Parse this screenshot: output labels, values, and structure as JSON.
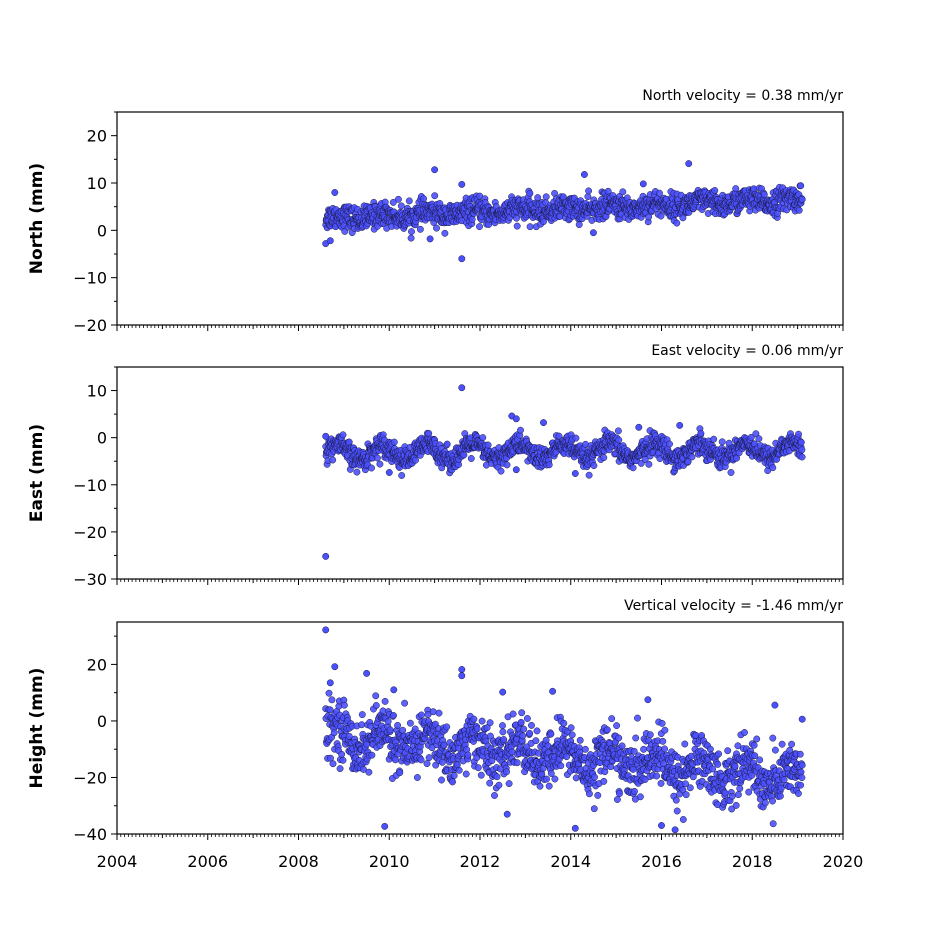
{
  "chart_data": [
    {
      "type": "scatter",
      "title": "North velocity = 0.38 mm/yr",
      "ylabel": "North (mm)",
      "xlim": [
        2004,
        2020
      ],
      "ylim": [
        -20,
        25
      ],
      "yticks": [
        -20,
        -10,
        0,
        10,
        20
      ],
      "xticks": [
        2004,
        2006,
        2008,
        2010,
        2012,
        2014,
        2016,
        2018,
        2020
      ],
      "show_x_tick_labels": false,
      "series": [
        {
          "points_model": {
            "start": 2008.6,
            "end": 2019.1,
            "offset_at_start": 2.5,
            "velocity": 0.38,
            "seasonal_amplitude": 0.5,
            "noise": 1.3
          },
          "outliers": [
            [
              2008.6,
              -2.8
            ],
            [
              2008.7,
              -2.2
            ],
            [
              2008.8,
              8.0
            ],
            [
              2011.0,
              12.8
            ],
            [
              2011.6,
              9.7
            ],
            [
              2011.6,
              -6.0
            ],
            [
              2014.3,
              11.8
            ],
            [
              2016.6,
              14.1
            ],
            [
              2015.6,
              9.8
            ],
            [
              2013.1,
              7.8
            ],
            [
              2010.9,
              -1.8
            ],
            [
              2014.5,
              -0.5
            ]
          ]
        }
      ],
      "marker_color": "#4b50ff"
    },
    {
      "type": "scatter",
      "title": "East velocity = 0.06 mm/yr",
      "ylabel": "East (mm)",
      "xlim": [
        2004,
        2020
      ],
      "ylim": [
        -30,
        15
      ],
      "yticks": [
        -30,
        -20,
        -10,
        0,
        10
      ],
      "xticks": [
        2004,
        2006,
        2008,
        2010,
        2012,
        2014,
        2016,
        2018,
        2020
      ],
      "show_x_tick_labels": false,
      "series": [
        {
          "points_model": {
            "start": 2008.6,
            "end": 2019.1,
            "offset_at_start": -3.2,
            "velocity": 0.06,
            "seasonal_amplitude": 1.6,
            "noise": 1.2
          },
          "outliers": [
            [
              2008.6,
              -25.2
            ],
            [
              2011.6,
              10.6
            ],
            [
              2012.7,
              4.6
            ],
            [
              2012.8,
              4.0
            ],
            [
              2013.4,
              3.2
            ],
            [
              2015.5,
              2.2
            ],
            [
              2016.4,
              2.6
            ],
            [
              2008.6,
              0.3
            ],
            [
              2010.0,
              -7.4
            ],
            [
              2014.1,
              -7.6
            ],
            [
              2012.8,
              -6.8
            ]
          ]
        }
      ],
      "marker_color": "#4b50ff"
    },
    {
      "type": "scatter",
      "title": "Vertical velocity = -1.46 mm/yr",
      "ylabel": "Height (mm)",
      "xlabel": "",
      "xlim": [
        2004,
        2020
      ],
      "ylim": [
        -40,
        35
      ],
      "yticks": [
        -40,
        -20,
        0,
        20
      ],
      "xticks": [
        2004,
        2006,
        2008,
        2010,
        2012,
        2014,
        2016,
        2018,
        2020
      ],
      "show_x_tick_labels": true,
      "series": [
        {
          "points_model": {
            "start": 2008.6,
            "end": 2019.1,
            "offset_at_start": -5.0,
            "velocity": -1.46,
            "seasonal_amplitude": 4.0,
            "noise": 5.0
          },
          "outliers": [
            [
              2008.6,
              32.2
            ],
            [
              2008.8,
              19.2
            ],
            [
              2008.7,
              13.5
            ],
            [
              2009.5,
              16.8
            ],
            [
              2010.1,
              11.0
            ],
            [
              2011.6,
              18.2
            ],
            [
              2011.6,
              16.0
            ],
            [
              2012.5,
              10.2
            ],
            [
              2013.6,
              10.5
            ],
            [
              2015.7,
              7.5
            ],
            [
              2009.9,
              -37.3
            ],
            [
              2014.1,
              -38.0
            ],
            [
              2016.3,
              -38.5
            ],
            [
              2016.0,
              -37.0
            ],
            [
              2012.6,
              -33.0
            ],
            [
              2018.5,
              5.6
            ],
            [
              2019.1,
              0.6
            ]
          ]
        }
      ],
      "marker_color": "#4b50ff"
    }
  ]
}
